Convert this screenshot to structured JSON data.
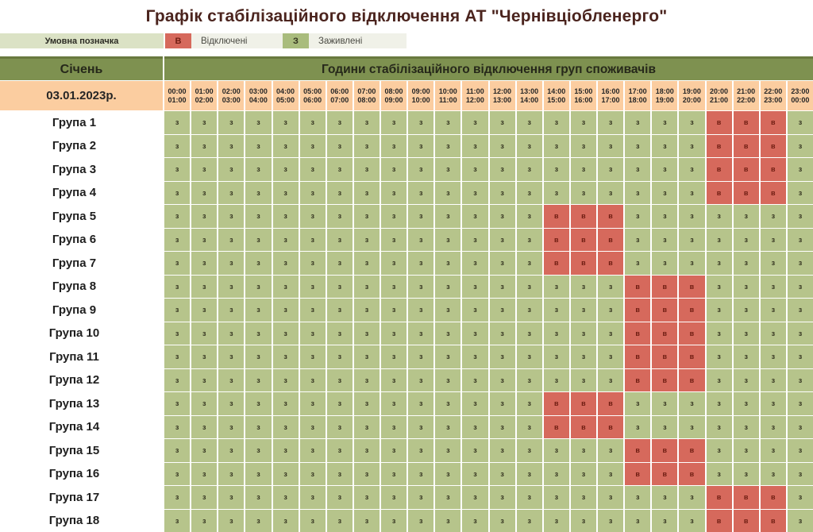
{
  "title": "Графік стабілізаційного відключення АТ \"Чернівціобленерго\"",
  "legend": {
    "label": "Умовна позначка",
    "off": {
      "symbol": "В",
      "label": "Відключені"
    },
    "on": {
      "symbol": "З",
      "label": "Заживлені"
    }
  },
  "table": {
    "month": "Січень",
    "header": "Години стабілізаційного відключення груп споживачів",
    "date": "03.01.2023р.",
    "cell_symbols": {
      "on": "з",
      "off": "в"
    },
    "time_slots": [
      {
        "start": "00:00",
        "end": "01:00"
      },
      {
        "start": "01:00",
        "end": "02:00"
      },
      {
        "start": "02:00",
        "end": "03:00"
      },
      {
        "start": "03:00",
        "end": "04:00"
      },
      {
        "start": "04:00",
        "end": "05:00"
      },
      {
        "start": "05:00",
        "end": "06:00"
      },
      {
        "start": "06:00",
        "end": "07:00"
      },
      {
        "start": "07:00",
        "end": "08:00"
      },
      {
        "start": "08:00",
        "end": "09:00"
      },
      {
        "start": "09:00",
        "end": "10:00"
      },
      {
        "start": "10:00",
        "end": "11:00"
      },
      {
        "start": "11:00",
        "end": "12:00"
      },
      {
        "start": "12:00",
        "end": "13:00"
      },
      {
        "start": "13:00",
        "end": "14:00"
      },
      {
        "start": "14:00",
        "end": "15:00"
      },
      {
        "start": "15:00",
        "end": "16:00"
      },
      {
        "start": "16:00",
        "end": "17:00"
      },
      {
        "start": "17:00",
        "end": "18:00"
      },
      {
        "start": "18:00",
        "end": "19:00"
      },
      {
        "start": "19:00",
        "end": "20:00"
      },
      {
        "start": "20:00",
        "end": "21:00"
      },
      {
        "start": "21:00",
        "end": "22:00"
      },
      {
        "start": "22:00",
        "end": "23:00"
      },
      {
        "start": "23:00",
        "end": "00:00"
      }
    ],
    "groups": [
      {
        "label": "Група 1",
        "off_hours": [
          20,
          21,
          22
        ]
      },
      {
        "label": "Група 2",
        "off_hours": [
          20,
          21,
          22
        ]
      },
      {
        "label": "Група 3",
        "off_hours": [
          20,
          21,
          22
        ]
      },
      {
        "label": "Група 4",
        "off_hours": [
          20,
          21,
          22
        ]
      },
      {
        "label": "Група 5",
        "off_hours": [
          14,
          15,
          16
        ]
      },
      {
        "label": "Група 6",
        "off_hours": [
          14,
          15,
          16
        ]
      },
      {
        "label": "Група 7",
        "off_hours": [
          14,
          15,
          16
        ]
      },
      {
        "label": "Група 8",
        "off_hours": [
          17,
          18,
          19
        ]
      },
      {
        "label": "Група 9",
        "off_hours": [
          17,
          18,
          19
        ]
      },
      {
        "label": "Група 10",
        "off_hours": [
          17,
          18,
          19
        ]
      },
      {
        "label": "Група 11",
        "off_hours": [
          17,
          18,
          19
        ]
      },
      {
        "label": "Група 12",
        "off_hours": [
          17,
          18,
          19
        ]
      },
      {
        "label": "Група 13",
        "off_hours": [
          14,
          15,
          16
        ]
      },
      {
        "label": "Група 14",
        "off_hours": [
          14,
          15,
          16
        ]
      },
      {
        "label": "Група 15",
        "off_hours": [
          17,
          18,
          19
        ]
      },
      {
        "label": "Група 16",
        "off_hours": [
          17,
          18,
          19
        ]
      },
      {
        "label": "Група 17",
        "off_hours": [
          20,
          21,
          22
        ]
      },
      {
        "label": "Група 18",
        "off_hours": [
          20,
          21,
          22
        ]
      }
    ]
  },
  "colors": {
    "title_text": "#4b241e",
    "header_bg": "#7e9150",
    "date_bg": "#fbcda0",
    "on_cell": "#b6c48b",
    "off_cell": "#d6695c",
    "legend_on": "#a9bc7d",
    "legend_label_bg": "#dbe2c5",
    "legend_bg": "#f0f1e8"
  }
}
